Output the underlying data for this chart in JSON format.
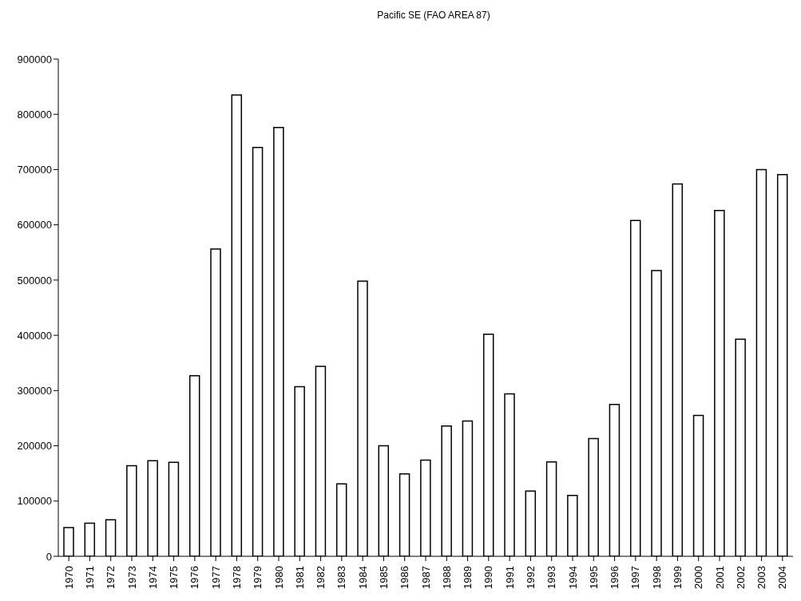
{
  "chart_data": {
    "type": "bar",
    "title": "Pacific SE (FAO AREA 87)",
    "categories": [
      "1970",
      "1971",
      "1972",
      "1973",
      "1974",
      "1975",
      "1976",
      "1977",
      "1978",
      "1979",
      "1980",
      "1981",
      "1982",
      "1983",
      "1984",
      "1985",
      "1986",
      "1987",
      "1988",
      "1989",
      "1990",
      "1991",
      "1992",
      "1993",
      "1994",
      "1995",
      "1996",
      "1997",
      "1998",
      "1999",
      "2000",
      "2001",
      "2002",
      "2003",
      "2004"
    ],
    "values": [
      52000,
      60000,
      66000,
      164000,
      173000,
      170000,
      327000,
      556000,
      835000,
      740000,
      776000,
      307000,
      344000,
      131000,
      498000,
      200000,
      149000,
      174000,
      236000,
      245000,
      402000,
      294000,
      118000,
      171000,
      110000,
      213000,
      275000,
      608000,
      517000,
      674000,
      255000,
      626000,
      393000,
      700000,
      691000
    ],
    "color": "#ffffff",
    "ylim": [
      0,
      900000
    ],
    "yticks": [
      0,
      100000,
      200000,
      300000,
      400000,
      500000,
      600000,
      700000,
      800000,
      900000
    ],
    "grid": false,
    "legend": false
  }
}
